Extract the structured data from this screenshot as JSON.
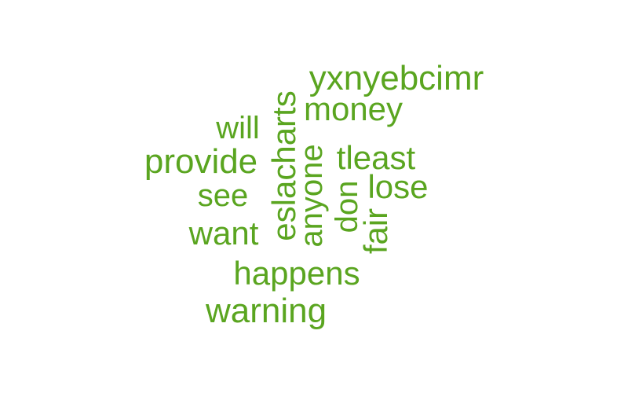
{
  "word_color": "#5aa520",
  "words": [
    {
      "id": "yxnyebcimr",
      "text": "yxnyebcimr"
    },
    {
      "id": "money",
      "text": "money"
    },
    {
      "id": "will",
      "text": "will"
    },
    {
      "id": "provide",
      "text": "provide"
    },
    {
      "id": "eslacharts",
      "text": "eslacharts"
    },
    {
      "id": "anyone",
      "text": "anyone"
    },
    {
      "id": "tleast",
      "text": "tleast"
    },
    {
      "id": "see",
      "text": "see"
    },
    {
      "id": "don",
      "text": "don"
    },
    {
      "id": "lose",
      "text": "lose"
    },
    {
      "id": "fair",
      "text": "fair"
    },
    {
      "id": "want",
      "text": "want"
    },
    {
      "id": "happens",
      "text": "happens"
    },
    {
      "id": "warning",
      "text": "warning"
    }
  ]
}
